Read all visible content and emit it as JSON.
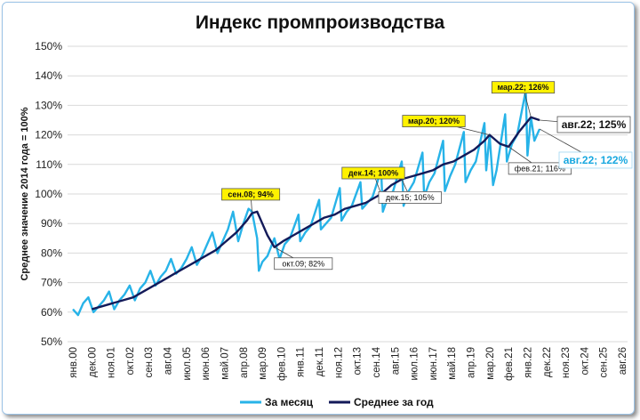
{
  "chart_data": {
    "type": "line",
    "title": "Индекс промпроизводства",
    "ylabel": "Среднее значение 2014 года = 100%",
    "xlabel": "",
    "ylim": [
      50,
      150
    ],
    "yticks": [
      "50%",
      "60%",
      "70%",
      "80%",
      "90%",
      "100%",
      "110%",
      "120%",
      "130%",
      "140%",
      "150%"
    ],
    "x_range": [
      "2000-01",
      "2026-08"
    ],
    "x_ticks": [
      "янв.00",
      "дек.00",
      "ноя.01",
      "окт.02",
      "сен.03",
      "авг.04",
      "июл.05",
      "июн.06",
      "май.07",
      "апр.08",
      "мар.09",
      "фев.10",
      "янв.11",
      "дек.11",
      "ноя.12",
      "окт.13",
      "сен.14",
      "авг.15",
      "июл.16",
      "июн.17",
      "май.18",
      "апр.19",
      "мар.20",
      "фев.21",
      "янв.22",
      "дек.22",
      "ноя.23",
      "окт.24",
      "сен.25",
      "авг.26"
    ],
    "grid": true,
    "legend_position": "bottom",
    "colors": {
      "monthly": "#27b3e8",
      "average": "#131a59",
      "highlight": "#fff200"
    },
    "series": [
      {
        "name": "За месяц",
        "x": [
          "2000-01",
          "2000-04",
          "2000-07",
          "2000-10",
          "2001-01",
          "2001-04",
          "2001-07",
          "2001-10",
          "2002-01",
          "2002-04",
          "2002-07",
          "2002-10",
          "2003-01",
          "2003-04",
          "2003-07",
          "2003-10",
          "2004-01",
          "2004-04",
          "2004-07",
          "2004-10",
          "2005-01",
          "2005-04",
          "2005-07",
          "2005-10",
          "2006-01",
          "2006-04",
          "2006-07",
          "2006-10",
          "2007-01",
          "2007-04",
          "2007-07",
          "2007-10",
          "2008-01",
          "2008-04",
          "2008-07",
          "2008-09",
          "2008-12",
          "2009-01",
          "2009-03",
          "2009-06",
          "2009-10",
          "2010-01",
          "2010-04",
          "2010-07",
          "2010-12",
          "2011-01",
          "2011-04",
          "2011-07",
          "2011-12",
          "2012-01",
          "2012-04",
          "2012-07",
          "2012-12",
          "2013-01",
          "2013-04",
          "2013-07",
          "2013-12",
          "2014-01",
          "2014-04",
          "2014-07",
          "2014-12",
          "2015-01",
          "2015-04",
          "2015-07",
          "2015-12",
          "2016-01",
          "2016-04",
          "2016-07",
          "2016-12",
          "2017-01",
          "2017-04",
          "2017-07",
          "2017-12",
          "2018-01",
          "2018-04",
          "2018-07",
          "2018-12",
          "2019-01",
          "2019-04",
          "2019-07",
          "2019-12",
          "2020-01",
          "2020-03",
          "2020-05",
          "2020-07",
          "2020-12",
          "2021-01",
          "2021-04",
          "2021-07",
          "2021-12",
          "2022-01",
          "2022-03",
          "2022-05",
          "2022-08"
        ],
        "values": [
          61,
          59,
          63,
          65,
          60,
          62,
          64,
          67,
          61,
          64,
          66,
          69,
          64,
          68,
          70,
          74,
          69,
          72,
          74,
          78,
          73,
          75,
          78,
          82,
          76,
          79,
          83,
          87,
          80,
          84,
          88,
          94,
          84,
          90,
          95,
          94,
          85,
          74,
          77,
          79,
          85,
          78,
          83,
          85,
          93,
          84,
          87,
          89,
          98,
          88,
          90,
          92,
          102,
          91,
          94,
          96,
          104,
          95,
          97,
          99,
          108,
          94,
          99,
          101,
          111,
          96,
          101,
          104,
          114,
          99,
          104,
          107,
          118,
          101,
          106,
          110,
          121,
          104,
          108,
          111,
          124,
          108,
          120,
          103,
          108,
          127,
          111,
          117,
          120,
          135,
          113,
          126,
          118,
          122
        ]
      },
      {
        "name": "Среднее за год",
        "x": [
          "2000-12",
          "2001-06",
          "2001-12",
          "2002-06",
          "2002-12",
          "2003-06",
          "2003-12",
          "2004-06",
          "2004-12",
          "2005-06",
          "2005-12",
          "2006-06",
          "2006-12",
          "2007-06",
          "2007-12",
          "2008-06",
          "2008-09",
          "2008-12",
          "2009-03",
          "2009-06",
          "2009-10",
          "2010-03",
          "2010-09",
          "2011-03",
          "2011-09",
          "2012-03",
          "2012-09",
          "2013-03",
          "2013-09",
          "2014-03",
          "2014-12",
          "2015-06",
          "2015-12",
          "2016-06",
          "2016-12",
          "2017-06",
          "2017-12",
          "2018-06",
          "2018-12",
          "2019-06",
          "2019-12",
          "2020-03",
          "2020-09",
          "2021-02",
          "2021-08",
          "2022-03",
          "2022-08"
        ],
        "values": [
          61,
          62,
          63,
          64,
          65,
          67,
          69,
          71,
          73,
          75,
          77,
          79,
          81,
          84,
          87,
          91,
          93.5,
          94,
          90,
          86,
          82,
          84,
          86,
          88,
          90,
          92,
          93,
          95,
          96,
          97,
          100,
          103,
          105,
          106,
          107,
          108,
          110,
          111,
          113,
          115,
          118,
          120,
          117,
          116,
          121,
          126,
          125
        ]
      }
    ],
    "annotations": [
      {
        "label": "сен.08; 94%",
        "x": "2008-09",
        "y": 94,
        "style": "yellow"
      },
      {
        "label": "окт.09; 82%",
        "x": "2009-10",
        "y": 82,
        "style": "white"
      },
      {
        "label": "дек.14; 100%",
        "x": "2014-12",
        "y": 100,
        "style": "yellow"
      },
      {
        "label": "дек.15; 105%",
        "x": "2015-12",
        "y": 105,
        "style": "white"
      },
      {
        "label": "мар.20; 120%",
        "x": "2020-03",
        "y": 120,
        "style": "yellow"
      },
      {
        "label": "фев.21; 116%",
        "x": "2021-02",
        "y": 116,
        "style": "white"
      },
      {
        "label": "мар.22; 126%",
        "x": "2022-03",
        "y": 126,
        "style": "yellow"
      },
      {
        "label": "авг.22; 125%",
        "x": "2022-08",
        "y": 125,
        "style": "big-dark"
      },
      {
        "label": "авг.22; 122%",
        "x": "2022-08",
        "y": 122,
        "style": "big-cyan"
      }
    ]
  }
}
